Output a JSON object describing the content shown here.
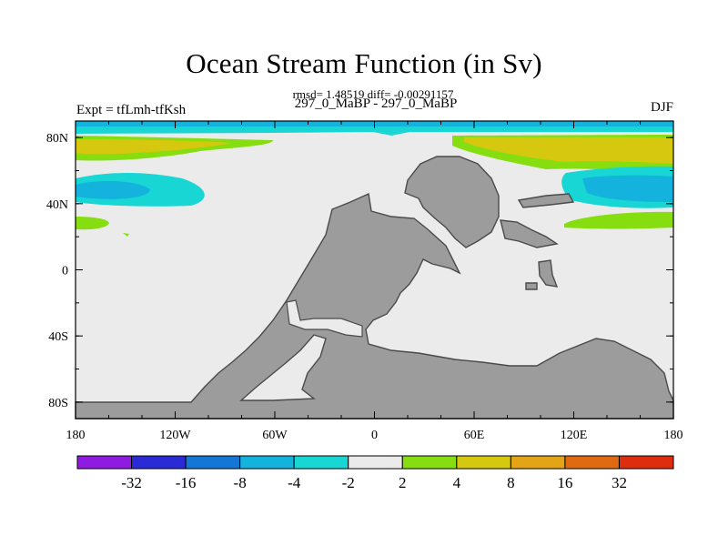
{
  "chart_data": {
    "type": "heatmap",
    "title": "Ocean Stream Function (in Sv)",
    "stats_line": "rmsd= 1.48519 diff= -0.00291157",
    "left_string": "Expt = tfLmh-tfKsh",
    "center_string": "297_0_MaBP - 297_0_MaBP",
    "right_string": "DJF",
    "x_ticks": [
      "180",
      "120W",
      "60W",
      "0",
      "60E",
      "120E",
      "180"
    ],
    "y_ticks": [
      "80N",
      "40N",
      "0",
      "40S",
      "80S"
    ],
    "xlim": [
      -180,
      180
    ],
    "ylim": [
      -90,
      90
    ],
    "colorbar": {
      "levels": [
        "-32",
        "-16",
        "-8",
        "-4",
        "-2",
        "2",
        "4",
        "8",
        "16",
        "32"
      ],
      "colors": [
        "#8f1ae0",
        "#2a2ad6",
        "#1477d6",
        "#13b3dd",
        "#18d6d4",
        "#ebebeb",
        "#86dd10",
        "#d6c80e",
        "#e3a416",
        "#e06a12",
        "#de2c0e"
      ]
    },
    "land_color": "#9c9c9c",
    "fill_color": "#ebebeb"
  }
}
